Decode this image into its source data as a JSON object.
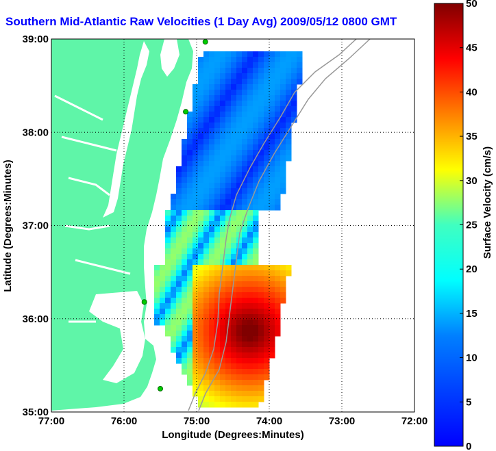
{
  "title": "Southern Mid-Atlantic Raw Velocities (1 Day Avg) 2009/05/12 0800 GMT",
  "xlabel": "Longitude (Degrees:Minutes)",
  "ylabel": "Latitude (Degrees:Minutes)",
  "x_ticks": [
    "77:00",
    "76:00",
    "75:00",
    "74:00",
    "73:00",
    "72:00"
  ],
  "y_ticks": [
    "39:00",
    "38:00",
    "37:00",
    "36:00",
    "35:00"
  ],
  "colorbar": {
    "label": "Surface Velocity (cm/s)",
    "ticks": [
      "0",
      "5",
      "10",
      "15",
      "20",
      "25",
      "30",
      "35",
      "40",
      "45",
      "50"
    ],
    "range": [
      0,
      50
    ],
    "colormap": "jet"
  },
  "colors": {
    "land": "#5ff5a8",
    "water": "#ffffff",
    "title": "#0000ff",
    "stations": "#00cc00"
  },
  "map_extent": {
    "lon": [
      -77,
      -72
    ],
    "lat": [
      35,
      39
    ]
  },
  "stations": [
    {
      "lon": -74.88,
      "lat": 38.97
    },
    {
      "lon": -75.15,
      "lat": 38.22
    },
    {
      "lon": -75.72,
      "lat": 36.18
    },
    {
      "lon": -75.5,
      "lat": 35.25
    }
  ]
}
